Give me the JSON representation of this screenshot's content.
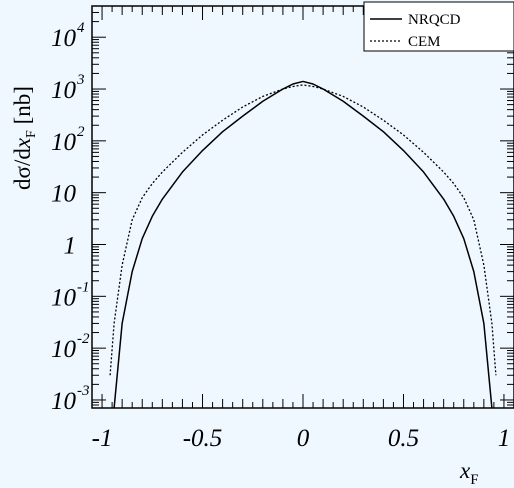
{
  "chart_data": {
    "type": "line",
    "x_axis": {
      "label_main": "x",
      "label_sub": "F",
      "range": [
        -1.05,
        1.05
      ],
      "ticks": [
        -1,
        -0.5,
        0,
        0.5,
        1
      ],
      "tick_labels": [
        "-1",
        "-0.5",
        "0",
        "0.5",
        "1"
      ]
    },
    "y_axis": {
      "label_prefix": "dσ/d",
      "label_var": "x",
      "label_sub": "F",
      "label_unit": " [nb]",
      "scale": "log",
      "range": [
        0.0007,
        40000
      ],
      "ticks": [
        0.001,
        0.01,
        0.1,
        1,
        10,
        100,
        1000,
        10000
      ],
      "tick_labels": [
        {
          "base": "10",
          "exp": "-3"
        },
        {
          "base": "10",
          "exp": "-2"
        },
        {
          "base": "10",
          "exp": "-1"
        },
        {
          "base": "1",
          "exp": ""
        },
        {
          "base": "10",
          "exp": ""
        },
        {
          "base": "10",
          "exp": "2"
        },
        {
          "base": "10",
          "exp": "3"
        },
        {
          "base": "10",
          "exp": "4"
        }
      ]
    },
    "legend_position": "top-right",
    "series": [
      {
        "name": "NRQCD",
        "style": "solid",
        "x": [
          -0.94,
          -0.9,
          -0.85,
          -0.8,
          -0.75,
          -0.7,
          -0.6,
          -0.5,
          -0.4,
          -0.3,
          -0.2,
          -0.1,
          -0.05,
          0,
          0.05,
          0.1,
          0.2,
          0.3,
          0.4,
          0.5,
          0.6,
          0.7,
          0.75,
          0.8,
          0.85,
          0.9,
          0.94
        ],
        "y": [
          0.0007,
          0.03,
          0.3,
          1.3,
          3.5,
          7.5,
          25,
          65,
          150,
          300,
          580,
          1000,
          1250,
          1400,
          1250,
          1000,
          580,
          300,
          150,
          65,
          25,
          7.5,
          3.5,
          1.3,
          0.3,
          0.03,
          0.0007
        ]
      },
      {
        "name": "CEM",
        "style": "dotted",
        "x": [
          -0.96,
          -0.94,
          -0.9,
          -0.85,
          -0.8,
          -0.75,
          -0.7,
          -0.6,
          -0.5,
          -0.4,
          -0.3,
          -0.2,
          -0.1,
          -0.05,
          0,
          0.05,
          0.1,
          0.2,
          0.3,
          0.4,
          0.5,
          0.6,
          0.7,
          0.75,
          0.8,
          0.85,
          0.9,
          0.94,
          0.96
        ],
        "y": [
          0.003,
          0.03,
          0.4,
          3,
          8,
          15,
          25,
          60,
          130,
          250,
          450,
          720,
          1000,
          1120,
          1200,
          1120,
          1000,
          720,
          450,
          250,
          130,
          60,
          25,
          15,
          8,
          3,
          0.4,
          0.03,
          0.003
        ]
      }
    ]
  }
}
